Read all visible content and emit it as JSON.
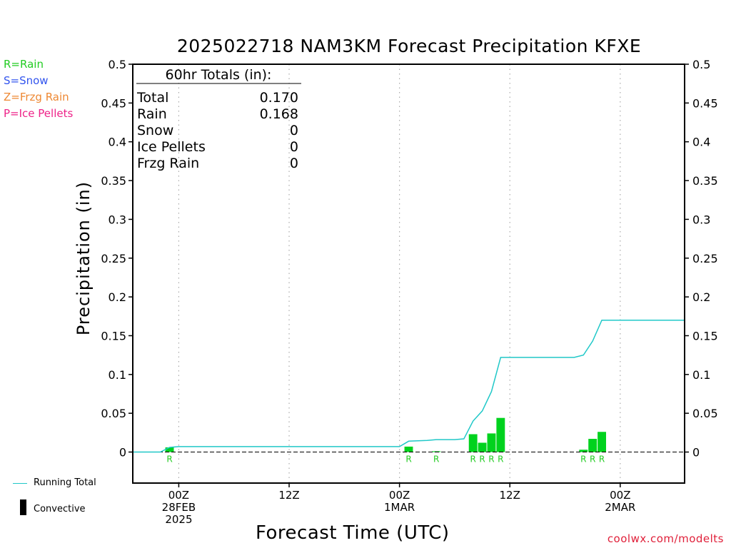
{
  "title": "2025022718 NAM3KM Forecast Precipitation KFXE",
  "legend": [
    {
      "label": "R=Rain",
      "color": "#22cc22"
    },
    {
      "label": "S=Snow",
      "color": "#3355ee"
    },
    {
      "label": "Z=Frzg Rain",
      "color": "#ee8833"
    },
    {
      "label": "P=Ice Pellets",
      "color": "#ee2288"
    }
  ],
  "key": {
    "running_total": "Running Total",
    "convective": "Convective"
  },
  "credit": "coolwx.com/modelts",
  "totals": {
    "header": "60hr Totals (in):",
    "rows": [
      {
        "label": "Total",
        "value": "0.170"
      },
      {
        "label": "Rain",
        "value": "0.168"
      },
      {
        "label": "Snow",
        "value": "0"
      },
      {
        "label": "Ice Pellets",
        "value": "0"
      },
      {
        "label": "Frzg Rain",
        "value": "0"
      }
    ]
  },
  "chart_data": {
    "type": "bar",
    "title": "2025022718 NAM3KM Forecast Precipitation KFXE",
    "xlabel": "Forecast Time (UTC)",
    "ylabel": "Precipitation (in)",
    "xlim_hours": [
      -5,
      55
    ],
    "ylim": [
      -0.04,
      0.5
    ],
    "yticks": [
      0,
      0.05,
      0.1,
      0.15,
      0.2,
      0.25,
      0.3,
      0.35,
      0.4,
      0.45,
      0.5
    ],
    "ytick_labels": [
      "0",
      "0.05",
      "0.1",
      "0.15",
      "0.2",
      "0.25",
      "0.3",
      "0.35",
      "0.4",
      "0.45",
      "0.5"
    ],
    "xticks": [
      {
        "hour": 0,
        "lines": [
          "00Z",
          "28FEB",
          "2025"
        ]
      },
      {
        "hour": 12,
        "lines": [
          "12Z"
        ]
      },
      {
        "hour": 24,
        "lines": [
          "00Z",
          "1MAR"
        ]
      },
      {
        "hour": 36,
        "lines": [
          "12Z"
        ]
      },
      {
        "hour": 48,
        "lines": [
          "00Z",
          "2MAR"
        ]
      }
    ],
    "grid": "vertical-dotted",
    "bar_color": "#00d21e",
    "line_color": "#20c8c8",
    "bars": [
      {
        "hour": -1,
        "value": 0.006,
        "ptype": "R"
      },
      {
        "hour": 25,
        "value": 0.007,
        "ptype": "R"
      },
      {
        "hour": 28,
        "value": 0.001,
        "ptype": "R"
      },
      {
        "hour": 32,
        "value": 0.023,
        "ptype": "R"
      },
      {
        "hour": 33,
        "value": 0.012,
        "ptype": "R"
      },
      {
        "hour": 34,
        "value": 0.024,
        "ptype": "R"
      },
      {
        "hour": 35,
        "value": 0.044,
        "ptype": "R"
      },
      {
        "hour": 44,
        "value": 0.003,
        "ptype": "R"
      },
      {
        "hour": 45,
        "value": 0.017,
        "ptype": "R"
      },
      {
        "hour": 46,
        "value": 0.026,
        "ptype": "R"
      }
    ],
    "series": [
      {
        "name": "Running Total",
        "x": [
          -5,
          -3,
          -2,
          -1,
          0,
          1,
          24,
          25,
          26,
          27,
          28,
          29,
          30,
          31,
          32,
          33,
          34,
          35,
          36,
          37,
          38,
          39,
          40,
          41,
          42,
          43,
          44,
          45,
          46,
          47,
          48,
          49,
          50,
          51,
          52,
          53,
          54,
          55
        ],
        "y": [
          0,
          0,
          0,
          0.006,
          0.007,
          0.007,
          0.007,
          0.014,
          0.0145,
          0.015,
          0.016,
          0.016,
          0.016,
          0.017,
          0.04,
          0.053,
          0.078,
          0.122,
          0.122,
          0.122,
          0.122,
          0.122,
          0.122,
          0.122,
          0.122,
          0.122,
          0.125,
          0.143,
          0.17,
          0.17,
          0.17,
          0.17,
          0.17,
          0.17,
          0.17,
          0.17,
          0.17,
          0.17
        ]
      }
    ]
  }
}
